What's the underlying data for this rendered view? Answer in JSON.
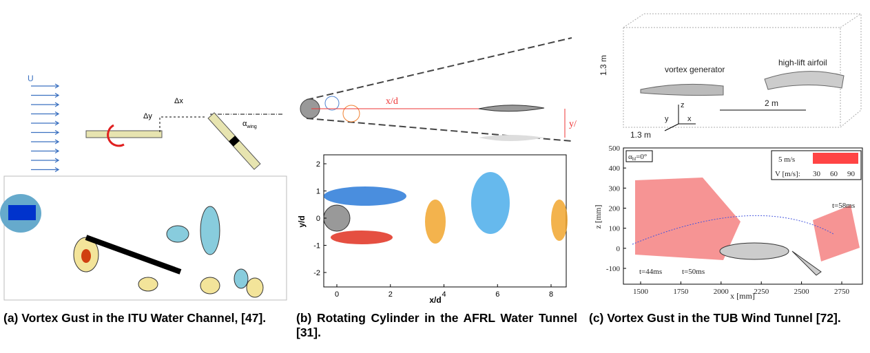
{
  "panels": [
    {
      "caption": "(a) Vortex Gust in the ITU Water Channel, [47].",
      "labels": {
        "u": "U",
        "dx": "Δx",
        "dy": "Δy",
        "alpha": "α",
        "alpha_sub": "wing"
      }
    },
    {
      "caption": "(b) Rotating Cylinder in the AFRL Water Tunnel [31].",
      "labels": {
        "xd": "x/d",
        "yd_cut": "y/"
      },
      "plot": {
        "xlabel": "x/d",
        "ylabel": "y/d",
        "xticks": [
          0,
          2,
          4,
          6,
          8
        ],
        "yticks": [
          2,
          1,
          0,
          -1,
          -2
        ]
      }
    },
    {
      "caption": "(c) Vortex Gust in the TUB Wind Tunnel [72].",
      "labels": {
        "height": "1.3 m",
        "vg": "vortex generator",
        "airfoil": "high-lift airfoil",
        "dist": "2 m",
        "z": "z",
        "y": "y",
        "x": "x",
        "width": "1.3 m",
        "alpha": "α",
        "alpha_sub": "hl",
        "alpha_rest": "=0°",
        "ref": "5 m/s",
        "vlabel": "V [m/s]:",
        "v1": "30",
        "v2": "60",
        "v3": "90",
        "t58": "t=58ms",
        "t44": "t=44ms",
        "t50": "t=50ms"
      },
      "plot": {
        "xlabel": "x [mm]",
        "ylabel": "z [mm]",
        "xticks": [
          1500,
          1750,
          2000,
          2250,
          2500,
          2750
        ],
        "yticks": [
          500,
          400,
          300,
          200,
          100,
          0,
          -100
        ]
      }
    }
  ]
}
